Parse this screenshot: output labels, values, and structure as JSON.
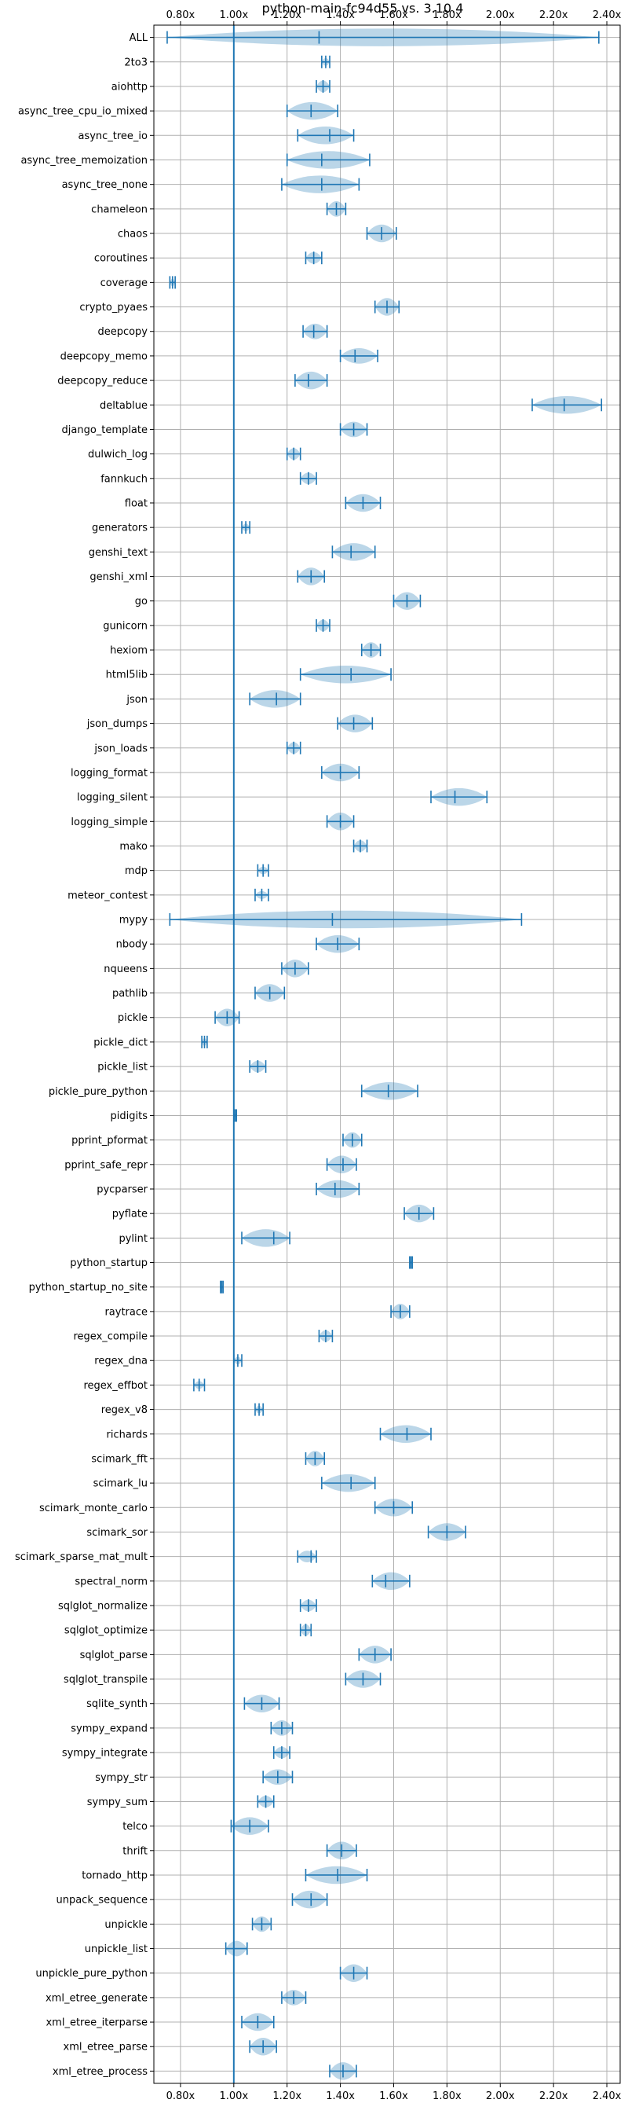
{
  "chart_data": {
    "type": "violin",
    "title": "python-main-fc94d55 vs. 3.10.4",
    "xlim": [
      0.7,
      2.45
    ],
    "xticks": [
      0.8,
      1.0,
      1.2,
      1.4,
      1.6,
      1.8,
      2.0,
      2.2,
      2.4
    ],
    "xtick_labels": [
      "0.80x",
      "1.00x",
      "1.20x",
      "1.40x",
      "1.60x",
      "1.80x",
      "2.00x",
      "2.20x",
      "2.40x"
    ],
    "reference_line": 1.0,
    "grid": true,
    "colors": {
      "accent": "#1f77b4",
      "violin_fill": "#1f77b4",
      "grid": "#b0b0b0"
    },
    "series": [
      {
        "name": "ALL",
        "min": 0.75,
        "max": 2.37,
        "mean": 1.32,
        "width": 0.1
      },
      {
        "name": "2to3",
        "min": 1.33,
        "max": 1.36,
        "mean": 1.345,
        "width": 0.02
      },
      {
        "name": "aiohttp",
        "min": 1.31,
        "max": 1.36,
        "mean": 1.335,
        "width": 0.03
      },
      {
        "name": "async_tree_cpu_io_mixed",
        "min": 1.2,
        "max": 1.39,
        "mean": 1.29,
        "width": 0.07
      },
      {
        "name": "async_tree_io",
        "min": 1.24,
        "max": 1.45,
        "mean": 1.36,
        "width": 0.06
      },
      {
        "name": "async_tree_memoization",
        "min": 1.2,
        "max": 1.51,
        "mean": 1.33,
        "width": 0.06
      },
      {
        "name": "async_tree_none",
        "min": 1.18,
        "max": 1.47,
        "mean": 1.33,
        "width": 0.07
      },
      {
        "name": "chameleon",
        "min": 1.35,
        "max": 1.42,
        "mean": 1.385,
        "width": 0.04
      },
      {
        "name": "chaos",
        "min": 1.5,
        "max": 1.61,
        "mean": 1.555,
        "width": 0.05
      },
      {
        "name": "coroutines",
        "min": 1.27,
        "max": 1.33,
        "mean": 1.3,
        "width": 0.03
      },
      {
        "name": "coverage",
        "min": 0.76,
        "max": 0.78,
        "mean": 0.77,
        "width": 0.02
      },
      {
        "name": "crypto_pyaes",
        "min": 1.53,
        "max": 1.62,
        "mean": 1.575,
        "width": 0.05
      },
      {
        "name": "deepcopy",
        "min": 1.26,
        "max": 1.35,
        "mean": 1.3,
        "width": 0.04
      },
      {
        "name": "deepcopy_memo",
        "min": 1.4,
        "max": 1.54,
        "mean": 1.455,
        "width": 0.04
      },
      {
        "name": "deepcopy_reduce",
        "min": 1.23,
        "max": 1.35,
        "mean": 1.28,
        "width": 0.05
      },
      {
        "name": "deltablue",
        "min": 2.12,
        "max": 2.38,
        "mean": 2.24,
        "width": 0.07
      },
      {
        "name": "django_template",
        "min": 1.4,
        "max": 1.5,
        "mean": 1.45,
        "width": 0.04
      },
      {
        "name": "dulwich_log",
        "min": 1.2,
        "max": 1.25,
        "mean": 1.225,
        "width": 0.03
      },
      {
        "name": "fannkuch",
        "min": 1.25,
        "max": 1.31,
        "mean": 1.28,
        "width": 0.03
      },
      {
        "name": "float",
        "min": 1.42,
        "max": 1.55,
        "mean": 1.485,
        "width": 0.05
      },
      {
        "name": "generators",
        "min": 1.03,
        "max": 1.06,
        "mean": 1.045,
        "width": 0.02
      },
      {
        "name": "genshi_text",
        "min": 1.37,
        "max": 1.53,
        "mean": 1.44,
        "width": 0.06
      },
      {
        "name": "genshi_xml",
        "min": 1.24,
        "max": 1.34,
        "mean": 1.29,
        "width": 0.05
      },
      {
        "name": "go",
        "min": 1.6,
        "max": 1.7,
        "mean": 1.65,
        "width": 0.05
      },
      {
        "name": "gunicorn",
        "min": 1.31,
        "max": 1.36,
        "mean": 1.335,
        "width": 0.03
      },
      {
        "name": "hexiom",
        "min": 1.48,
        "max": 1.55,
        "mean": 1.515,
        "width": 0.04
      },
      {
        "name": "html5lib",
        "min": 1.25,
        "max": 1.59,
        "mean": 1.44,
        "width": 0.07
      },
      {
        "name": "json",
        "min": 1.06,
        "max": 1.25,
        "mean": 1.16,
        "width": 0.07
      },
      {
        "name": "json_dumps",
        "min": 1.39,
        "max": 1.52,
        "mean": 1.45,
        "width": 0.05
      },
      {
        "name": "json_loads",
        "min": 1.2,
        "max": 1.25,
        "mean": 1.225,
        "width": 0.03
      },
      {
        "name": "logging_format",
        "min": 1.33,
        "max": 1.47,
        "mean": 1.4,
        "width": 0.06
      },
      {
        "name": "logging_silent",
        "min": 1.74,
        "max": 1.95,
        "mean": 1.83,
        "width": 0.07
      },
      {
        "name": "logging_simple",
        "min": 1.35,
        "max": 1.45,
        "mean": 1.4,
        "width": 0.05
      },
      {
        "name": "mako",
        "min": 1.45,
        "max": 1.5,
        "mean": 1.475,
        "width": 0.03
      },
      {
        "name": "mdp",
        "min": 1.09,
        "max": 1.13,
        "mean": 1.11,
        "width": 0.02
      },
      {
        "name": "meteor_contest",
        "min": 1.08,
        "max": 1.13,
        "mean": 1.105,
        "width": 0.02
      },
      {
        "name": "mypy",
        "min": 0.76,
        "max": 2.08,
        "mean": 1.37,
        "width": 0.06
      },
      {
        "name": "nbody",
        "min": 1.31,
        "max": 1.47,
        "mean": 1.39,
        "width": 0.06
      },
      {
        "name": "nqueens",
        "min": 1.18,
        "max": 1.28,
        "mean": 1.23,
        "width": 0.05
      },
      {
        "name": "pathlib",
        "min": 1.08,
        "max": 1.19,
        "mean": 1.135,
        "width": 0.05
      },
      {
        "name": "pickle",
        "min": 0.93,
        "max": 1.02,
        "mean": 0.975,
        "width": 0.05
      },
      {
        "name": "pickle_dict",
        "min": 0.88,
        "max": 0.9,
        "mean": 0.89,
        "width": 0.02
      },
      {
        "name": "pickle_list",
        "min": 1.06,
        "max": 1.12,
        "mean": 1.09,
        "width": 0.03
      },
      {
        "name": "pickle_pure_python",
        "min": 1.48,
        "max": 1.69,
        "mean": 1.58,
        "width": 0.05
      },
      {
        "name": "pidigits",
        "min": 1.0,
        "max": 1.01,
        "mean": 1.005,
        "width": 0.01
      },
      {
        "name": "pprint_pformat",
        "min": 1.41,
        "max": 1.48,
        "mean": 1.445,
        "width": 0.04
      },
      {
        "name": "pprint_safe_repr",
        "min": 1.35,
        "max": 1.46,
        "mean": 1.41,
        "width": 0.05
      },
      {
        "name": "pycparser",
        "min": 1.31,
        "max": 1.47,
        "mean": 1.38,
        "width": 0.06
      },
      {
        "name": "pyflate",
        "min": 1.64,
        "max": 1.75,
        "mean": 1.695,
        "width": 0.05
      },
      {
        "name": "pylint",
        "min": 1.03,
        "max": 1.21,
        "mean": 1.15,
        "width": 0.05
      },
      {
        "name": "python_startup",
        "min": 1.66,
        "max": 1.67,
        "mean": 1.665,
        "width": 0.01
      },
      {
        "name": "python_startup_no_site",
        "min": 0.95,
        "max": 0.96,
        "mean": 0.955,
        "width": 0.01
      },
      {
        "name": "raytrace",
        "min": 1.59,
        "max": 1.66,
        "mean": 1.625,
        "width": 0.04
      },
      {
        "name": "regex_compile",
        "min": 1.32,
        "max": 1.37,
        "mean": 1.345,
        "width": 0.03
      },
      {
        "name": "regex_dna",
        "min": 1.0,
        "max": 1.03,
        "mean": 1.015,
        "width": 0.02
      },
      {
        "name": "regex_effbot",
        "min": 0.85,
        "max": 0.89,
        "mean": 0.87,
        "width": 0.02
      },
      {
        "name": "regex_v8",
        "min": 1.08,
        "max": 1.11,
        "mean": 1.095,
        "width": 0.02
      },
      {
        "name": "richards",
        "min": 1.55,
        "max": 1.74,
        "mean": 1.65,
        "width": 0.07
      },
      {
        "name": "scimark_fft",
        "min": 1.27,
        "max": 1.34,
        "mean": 1.305,
        "width": 0.04
      },
      {
        "name": "scimark_lu",
        "min": 1.33,
        "max": 1.53,
        "mean": 1.44,
        "width": 0.07
      },
      {
        "name": "scimark_monte_carlo",
        "min": 1.53,
        "max": 1.67,
        "mean": 1.6,
        "width": 0.07
      },
      {
        "name": "scimark_sor",
        "min": 1.73,
        "max": 1.87,
        "mean": 1.8,
        "width": 0.06
      },
      {
        "name": "scimark_sparse_mat_mult",
        "min": 1.24,
        "max": 1.31,
        "mean": 1.29,
        "width": 0.03
      },
      {
        "name": "spectral_norm",
        "min": 1.52,
        "max": 1.66,
        "mean": 1.57,
        "width": 0.05
      },
      {
        "name": "sqlglot_normalize",
        "min": 1.25,
        "max": 1.31,
        "mean": 1.28,
        "width": 0.03
      },
      {
        "name": "sqlglot_optimize",
        "min": 1.25,
        "max": 1.29,
        "mean": 1.27,
        "width": 0.03
      },
      {
        "name": "sqlglot_parse",
        "min": 1.47,
        "max": 1.59,
        "mean": 1.53,
        "width": 0.05
      },
      {
        "name": "sqlglot_transpile",
        "min": 1.42,
        "max": 1.55,
        "mean": 1.485,
        "width": 0.05
      },
      {
        "name": "sqlite_synth",
        "min": 1.04,
        "max": 1.17,
        "mean": 1.105,
        "width": 0.05
      },
      {
        "name": "sympy_expand",
        "min": 1.14,
        "max": 1.22,
        "mean": 1.18,
        "width": 0.04
      },
      {
        "name": "sympy_integrate",
        "min": 1.15,
        "max": 1.21,
        "mean": 1.18,
        "width": 0.03
      },
      {
        "name": "sympy_str",
        "min": 1.11,
        "max": 1.22,
        "mean": 1.165,
        "width": 0.04
      },
      {
        "name": "sympy_sum",
        "min": 1.09,
        "max": 1.15,
        "mean": 1.12,
        "width": 0.03
      },
      {
        "name": "telco",
        "min": 0.99,
        "max": 1.13,
        "mean": 1.06,
        "width": 0.05
      },
      {
        "name": "thrift",
        "min": 1.35,
        "max": 1.46,
        "mean": 1.405,
        "width": 0.05
      },
      {
        "name": "tornado_http",
        "min": 1.27,
        "max": 1.5,
        "mean": 1.39,
        "width": 0.06
      },
      {
        "name": "unpack_sequence",
        "min": 1.22,
        "max": 1.35,
        "mean": 1.29,
        "width": 0.05
      },
      {
        "name": "unpickle",
        "min": 1.07,
        "max": 1.14,
        "mean": 1.105,
        "width": 0.04
      },
      {
        "name": "unpickle_list",
        "min": 0.97,
        "max": 1.05,
        "mean": 1.0,
        "width": 0.04
      },
      {
        "name": "unpickle_pure_python",
        "min": 1.4,
        "max": 1.5,
        "mean": 1.45,
        "width": 0.05
      },
      {
        "name": "xml_etree_generate",
        "min": 1.18,
        "max": 1.27,
        "mean": 1.225,
        "width": 0.04
      },
      {
        "name": "xml_etree_iterparse",
        "min": 1.03,
        "max": 1.15,
        "mean": 1.09,
        "width": 0.05
      },
      {
        "name": "xml_etree_parse",
        "min": 1.06,
        "max": 1.16,
        "mean": 1.11,
        "width": 0.05
      },
      {
        "name": "xml_etree_process",
        "min": 1.36,
        "max": 1.46,
        "mean": 1.41,
        "width": 0.05
      }
    ]
  }
}
